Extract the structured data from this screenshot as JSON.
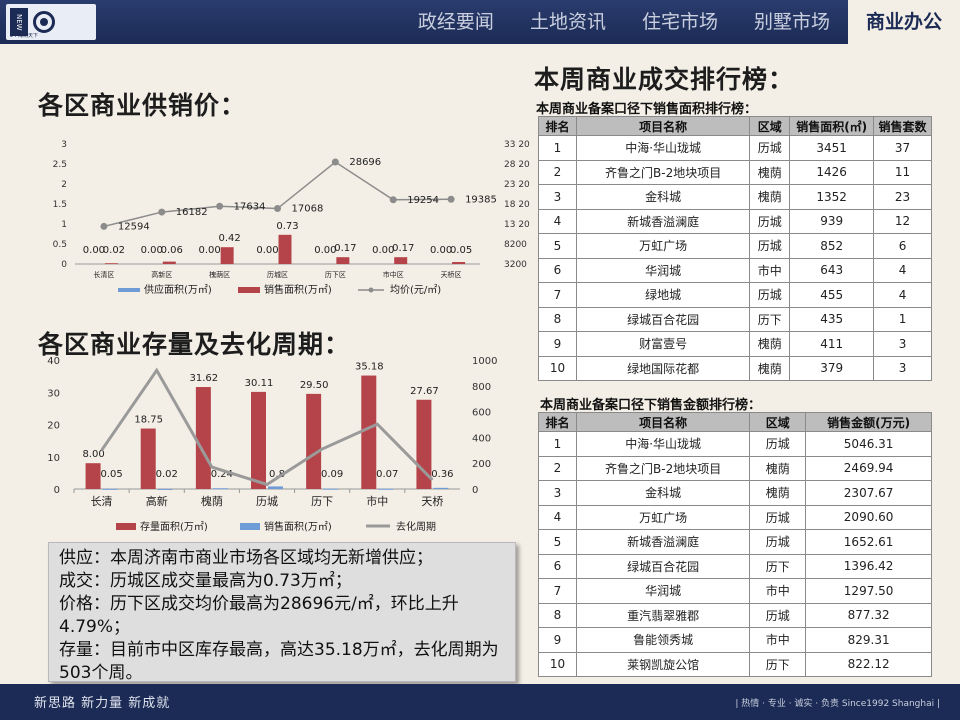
{
  "header": {
    "logo_text": "NEW",
    "logo_sub": "24·海纳天下",
    "nav": [
      {
        "label": "政经要闻"
      },
      {
        "label": "土地资讯"
      },
      {
        "label": "住宅市场"
      },
      {
        "label": "别墅市场"
      },
      {
        "label": "商业办公",
        "active": true
      }
    ]
  },
  "sections": {
    "supply_title": "各区商业供销价：",
    "stock_title": "各区商业存量及去化周期：",
    "rank_title": "本周商业成交排行榜："
  },
  "chart_data": [
    {
      "type": "bar",
      "categories": [
        "长清区",
        "高新区",
        "槐荫区",
        "历城区",
        "历下区",
        "市中区",
        "天桥区"
      ],
      "series": [
        {
          "name": "供应面积(万㎡)",
          "axis": "left",
          "values": [
            0.0,
            0.0,
            0.0,
            0.0,
            0.0,
            0.0,
            0.0
          ],
          "color": "#6f9bd6"
        },
        {
          "name": "销售面积(万㎡)",
          "axis": "left",
          "values": [
            0.02,
            0.06,
            0.42,
            0.73,
            0.17,
            0.17,
            0.05
          ],
          "color": "#b5444a"
        },
        {
          "name": "均价(元/㎡)",
          "type": "line",
          "axis": "right",
          "values": [
            12594,
            16182,
            17634,
            17068,
            28696,
            19254,
            19385
          ],
          "color": "#8c8c8c"
        }
      ],
      "ylim_left": [
        0,
        3
      ],
      "yticks_left": [
        0,
        0.5,
        1,
        1.5,
        2,
        2.5,
        3
      ],
      "yticks_left_labels": [
        "0",
        "0.5",
        "1",
        "1.5",
        "2",
        "2.5",
        "3"
      ],
      "ylim_right": [
        3200,
        33200
      ],
      "yticks_right": [
        3200,
        8200,
        13200,
        18200,
        23200,
        28200,
        33200
      ],
      "yticks_right_labels": [
        "3200",
        "8200",
        "13 200",
        "18 200",
        "23 200",
        "28 200",
        "33 200"
      ],
      "legend": "bottom"
    },
    {
      "type": "bar",
      "categories": [
        "长清",
        "高新",
        "槐荫",
        "历城",
        "历下",
        "市中",
        "天桥"
      ],
      "series": [
        {
          "name": "存量面积(万㎡)",
          "axis": "left",
          "values": [
            8.0,
            18.75,
            31.62,
            30.11,
            29.5,
            35.18,
            27.67
          ],
          "color": "#b5444a"
        },
        {
          "name": "销售面积(万㎡)",
          "axis": "left",
          "values": [
            0.05,
            0.02,
            0.24,
            0.8,
            0.09,
            0.07,
            0.36
          ],
          "color": "#6f9bd6"
        },
        {
          "name": "去化周期",
          "type": "line",
          "axis": "right",
          "values": [
            300,
            920,
            170,
            35,
            310,
            503,
            70
          ],
          "color": "#9a9a9a"
        }
      ],
      "ylim_left": [
        0,
        40
      ],
      "yticks_left": [
        0,
        10,
        20,
        30,
        40
      ],
      "ylim_right": [
        0,
        1000
      ],
      "yticks_right": [
        0,
        200,
        400,
        600,
        800,
        1000
      ],
      "legend": "bottom"
    }
  ],
  "table_area": {
    "title": "本周商业备案口径下销售面积排行榜：",
    "headers": [
      "排名",
      "项目名称",
      "区域",
      "销售面积(㎡)",
      "销售套数"
    ],
    "rows": [
      [
        "1",
        "中海·华山珑城",
        "历城",
        "3451",
        "37"
      ],
      [
        "2",
        "齐鲁之门B-2地块项目",
        "槐荫",
        "1426",
        "11"
      ],
      [
        "3",
        "金科城",
        "槐荫",
        "1352",
        "23"
      ],
      [
        "4",
        "新城香溢澜庭",
        "历城",
        "939",
        "12"
      ],
      [
        "5",
        "万虹广场",
        "历城",
        "852",
        "6"
      ],
      [
        "6",
        "华润城",
        "市中",
        "643",
        "4"
      ],
      [
        "7",
        "绿地城",
        "历城",
        "455",
        "4"
      ],
      [
        "8",
        "绿城百合花园",
        "历下",
        "435",
        "1"
      ],
      [
        "9",
        "财富壹号",
        "槐荫",
        "411",
        "3"
      ],
      [
        "10",
        "绿地国际花都",
        "槐荫",
        "379",
        "3"
      ]
    ]
  },
  "table_amount": {
    "title": "本周商业备案口径下销售金额排行榜：",
    "headers": [
      "排名",
      "项目名称",
      "区域",
      "销售金额(万元)"
    ],
    "rows": [
      [
        "1",
        "中海·华山珑城",
        "历城",
        "5046.31"
      ],
      [
        "2",
        "齐鲁之门B-2地块项目",
        "槐荫",
        "2469.94"
      ],
      [
        "3",
        "金科城",
        "槐荫",
        "2307.67"
      ],
      [
        "4",
        "万虹广场",
        "历城",
        "2090.60"
      ],
      [
        "5",
        "新城香溢澜庭",
        "历城",
        "1652.61"
      ],
      [
        "6",
        "绿城百合花园",
        "历下",
        "1396.42"
      ],
      [
        "7",
        "华润城",
        "市中",
        "1297.50"
      ],
      [
        "8",
        "重汽翡翠雅郡",
        "历城",
        "877.32"
      ],
      [
        "9",
        "鲁能领秀城",
        "市中",
        "829.31"
      ],
      [
        "10",
        "莱钢凯旋公馆",
        "历下",
        "822.12"
      ]
    ]
  },
  "summary": {
    "lines": [
      "供应：本周济南市商业市场各区域均无新增供应；",
      "成交：历城区成交量最高为0.73万㎡；",
      "价格：历下区成交均价最高为28696元/㎡，环比上升4.79%；",
      "存量：目前市中区库存最高，高达35.18万㎡，去化周期为503个周。"
    ]
  },
  "footer": {
    "slogan": "新思路  新力量  新成就",
    "tagline": "|  热情 · 专业 · 诚实 · 负责  Since1992 Shanghai  |"
  }
}
